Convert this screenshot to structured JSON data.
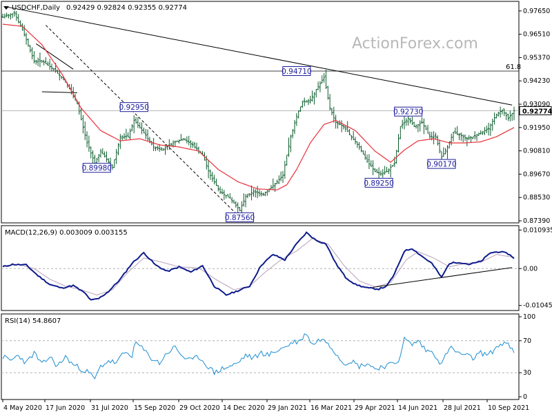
{
  "header": {
    "symbol_line": "USDCHF,Daily",
    "ohlc": "0.92429 0.92824 0.92355 0.92774"
  },
  "watermark": "ActionForex.com",
  "colors": {
    "bars": "#0a5a2a",
    "ma": "#e8303a",
    "macd": "#0c1a8c",
    "signal": "#b8a0b8",
    "rsi": "#1a8cd0",
    "label_border": "#1a1a9a",
    "grid_dash": "#b0b0b0"
  },
  "chart_data": [
    {
      "type": "candlestick",
      "title": "USDCHF,Daily",
      "ylim": [
        0.8739,
        0.9805
      ],
      "y_ticks": [
        "0.97650",
        "0.96510",
        "0.95370",
        "0.94230",
        "0.93090",
        "0.91950",
        "0.90810",
        "0.89670",
        "0.88530",
        "0.87390"
      ],
      "y_tick_values": [
        0.9765,
        0.9651,
        0.9537,
        0.9423,
        0.9309,
        0.9195,
        0.9081,
        0.8967,
        0.8853,
        0.8739
      ],
      "current_price_label": "0.92774",
      "current_price": 0.92774,
      "fib_label": "61.8",
      "fib_level": 0.9471,
      "x_date_labels": [
        "4 May 2020",
        "17 Jun 2020",
        "31 Jul 2020",
        "15 Sep 2020",
        "29 Oct 2020",
        "14 Dec 2020",
        "29 Jan 2021",
        "16 Mar 2021",
        "29 Apr 2021",
        "14 Jun 2021",
        "28 Jul 2021",
        "10 Sep 2021"
      ],
      "annotations": [
        {
          "text": "0.94710",
          "date_index": 150,
          "price": 0.9471
        },
        {
          "text": "0.92950",
          "date_index": 67,
          "price": 0.9295
        },
        {
          "text": "0.92730",
          "date_index": 207,
          "price": 0.9273
        },
        {
          "text": "0.89980",
          "date_index": 48,
          "price": 0.8998
        },
        {
          "text": "0.90170",
          "date_index": 224,
          "price": 0.9017
        },
        {
          "text": "0.89250",
          "date_index": 192,
          "price": 0.8925
        },
        {
          "text": "0.87560",
          "date_index": 121,
          "price": 0.8756
        }
      ],
      "trendlines": [
        {
          "from": [
            2,
            0.9785
          ],
          "to": [
            260,
            0.9305
          ]
        },
        {
          "from": [
            22,
            0.9695
          ],
          "to": [
            121,
            0.8756
          ],
          "style": "dashed"
        },
        {
          "from": [
            17,
            0.9605
          ],
          "to": [
            36,
            0.948
          ]
        },
        {
          "from": [
            20,
            0.937
          ],
          "to": [
            38,
            0.9365
          ]
        }
      ],
      "price_anchors": [
        [
          0,
          0.9735
        ],
        [
          6,
          0.9755
        ],
        [
          11,
          0.965
        ],
        [
          16,
          0.952
        ],
        [
          20,
          0.952
        ],
        [
          26,
          0.948
        ],
        [
          32,
          0.942
        ],
        [
          38,
          0.931
        ],
        [
          43,
          0.912
        ],
        [
          47,
          0.902
        ],
        [
          50,
          0.908
        ],
        [
          56,
          0.9
        ],
        [
          60,
          0.915
        ],
        [
          64,
          0.915
        ],
        [
          67,
          0.923
        ],
        [
          72,
          0.917
        ],
        [
          77,
          0.91
        ],
        [
          82,
          0.909
        ],
        [
          87,
          0.912
        ],
        [
          92,
          0.914
        ],
        [
          97,
          0.911
        ],
        [
          102,
          0.906
        ],
        [
          106,
          0.896
        ],
        [
          111,
          0.888
        ],
        [
          116,
          0.885
        ],
        [
          121,
          0.879
        ],
        [
          124,
          0.886
        ],
        [
          128,
          0.888
        ],
        [
          133,
          0.887
        ],
        [
          138,
          0.891
        ],
        [
          143,
          0.896
        ],
        [
          145,
          0.906
        ],
        [
          147,
          0.915
        ],
        [
          150,
          0.925
        ],
        [
          153,
          0.932
        ],
        [
          157,
          0.933
        ],
        [
          160,
          0.938
        ],
        [
          164,
          0.944
        ],
        [
          167,
          0.929
        ],
        [
          170,
          0.922
        ],
        [
          174,
          0.92
        ],
        [
          178,
          0.915
        ],
        [
          182,
          0.91
        ],
        [
          186,
          0.903
        ],
        [
          190,
          0.898
        ],
        [
          193,
          0.897
        ],
        [
          196,
          0.898
        ],
        [
          200,
          0.902
        ],
        [
          203,
          0.92
        ],
        [
          207,
          0.924
        ],
        [
          210,
          0.92
        ],
        [
          214,
          0.922
        ],
        [
          218,
          0.915
        ],
        [
          221,
          0.915
        ],
        [
          224,
          0.905
        ],
        [
          227,
          0.91
        ],
        [
          230,
          0.917
        ],
        [
          233,
          0.916
        ],
        [
          237,
          0.914
        ],
        [
          240,
          0.915
        ],
        [
          244,
          0.917
        ],
        [
          248,
          0.919
        ],
        [
          252,
          0.926
        ],
        [
          255,
          0.928
        ],
        [
          258,
          0.924
        ],
        [
          261,
          0.9277
        ]
      ],
      "series": [
        {
          "name": "MA",
          "values_anchor": [
            [
              0,
              0.97
            ],
            [
              10,
              0.969
            ],
            [
              20,
              0.96
            ],
            [
              30,
              0.946
            ],
            [
              40,
              0.929
            ],
            [
              50,
              0.918
            ],
            [
              60,
              0.913
            ],
            [
              70,
              0.914
            ],
            [
              80,
              0.911
            ],
            [
              90,
              0.91
            ],
            [
              100,
              0.908
            ],
            [
              110,
              0.899
            ],
            [
              120,
              0.893
            ],
            [
              130,
              0.8895
            ],
            [
              140,
              0.889
            ],
            [
              145,
              0.8915
            ],
            [
              150,
              0.899
            ],
            [
              157,
              0.912
            ],
            [
              164,
              0.921
            ],
            [
              170,
              0.923
            ],
            [
              180,
              0.918
            ],
            [
              190,
              0.908
            ],
            [
              198,
              0.9025
            ],
            [
              205,
              0.9085
            ],
            [
              212,
              0.913
            ],
            [
              220,
              0.914
            ],
            [
              228,
              0.912
            ],
            [
              236,
              0.912
            ],
            [
              244,
              0.9125
            ],
            [
              252,
              0.915
            ],
            [
              258,
              0.918
            ],
            [
              261,
              0.9195
            ]
          ]
        }
      ]
    },
    {
      "type": "line",
      "title": "MACD(12,26,9) 0.003009 0.003155",
      "ylim": [
        -0.0115,
        0.0118
      ],
      "y_ticks": [
        "0.010935",
        "0.00",
        "-0.010459"
      ],
      "y_tick_values": [
        0.010935,
        0.0,
        -0.010459
      ],
      "trendline": {
        "from": [
          189,
          -0.0053
        ],
        "to": [
          260,
          0.0003
        ]
      },
      "series": [
        {
          "name": "MACD",
          "values_anchor": [
            [
              0,
              0.0005
            ],
            [
              5,
              0.0012
            ],
            [
              12,
              0.001
            ],
            [
              18,
              -0.002
            ],
            [
              24,
              -0.0045
            ],
            [
              30,
              -0.0055
            ],
            [
              36,
              -0.0048
            ],
            [
              42,
              -0.007
            ],
            [
              45,
              -0.009
            ],
            [
              49,
              -0.0085
            ],
            [
              54,
              -0.0065
            ],
            [
              60,
              -0.003
            ],
            [
              66,
              0.0015
            ],
            [
              72,
              0.0045
            ],
            [
              78,
              0.001
            ],
            [
              84,
              -0.0008
            ],
            [
              90,
              0.0005
            ],
            [
              96,
              -0.001
            ],
            [
              102,
              0.0008
            ],
            [
              108,
              -0.005
            ],
            [
              114,
              -0.0075
            ],
            [
              120,
              -0.0063
            ],
            [
              126,
              -0.005
            ],
            [
              132,
              0.001
            ],
            [
              138,
              0.004
            ],
            [
              144,
              0.0025
            ],
            [
              150,
              0.007
            ],
            [
              155,
              0.0102
            ],
            [
              160,
              0.008
            ],
            [
              165,
              0.007
            ],
            [
              170,
              0.0015
            ],
            [
              175,
              -0.0025
            ],
            [
              180,
              -0.0045
            ],
            [
              186,
              -0.0055
            ],
            [
              192,
              -0.0058
            ],
            [
              196,
              -0.005
            ],
            [
              200,
              -0.0015
            ],
            [
              205,
              0.005
            ],
            [
              209,
              0.0057
            ],
            [
              214,
              0.0035
            ],
            [
              219,
              0.0015
            ],
            [
              224,
              -0.0025
            ],
            [
              228,
              0.0015
            ],
            [
              233,
              0.0018
            ],
            [
              238,
              0.0012
            ],
            [
              244,
              0.002
            ],
            [
              249,
              0.0045
            ],
            [
              254,
              0.0048
            ],
            [
              258,
              0.0042
            ],
            [
              261,
              0.003
            ]
          ]
        },
        {
          "name": "Signal",
          "values_anchor": [
            [
              0,
              0.0008
            ],
            [
              8,
              0.0012
            ],
            [
              16,
              0.0
            ],
            [
              24,
              -0.003
            ],
            [
              32,
              -0.005
            ],
            [
              40,
              -0.006
            ],
            [
              48,
              -0.0075
            ],
            [
              56,
              -0.006
            ],
            [
              64,
              -0.001
            ],
            [
              72,
              0.003
            ],
            [
              80,
              0.002
            ],
            [
              90,
              0.0005
            ],
            [
              100,
              0.0002
            ],
            [
              110,
              -0.0035
            ],
            [
              118,
              -0.006
            ],
            [
              126,
              -0.005
            ],
            [
              134,
              -0.001
            ],
            [
              142,
              0.0025
            ],
            [
              150,
              0.005
            ],
            [
              158,
              0.0085
            ],
            [
              166,
              0.007
            ],
            [
              174,
              0.001
            ],
            [
              182,
              -0.0035
            ],
            [
              190,
              -0.0052
            ],
            [
              198,
              -0.004
            ],
            [
              206,
              0.0025
            ],
            [
              212,
              0.0048
            ],
            [
              220,
              0.003
            ],
            [
              228,
              0.0005
            ],
            [
              236,
              0.0015
            ],
            [
              244,
              0.0018
            ],
            [
              252,
              0.004
            ],
            [
              261,
              0.0032
            ]
          ]
        }
      ]
    },
    {
      "type": "line",
      "title": "RSI(14) 54.8607",
      "ylim": [
        0,
        100
      ],
      "y_ticks": [
        "100",
        "70",
        "30",
        "0"
      ],
      "y_tick_values": [
        100,
        70,
        30,
        0
      ],
      "series": [
        {
          "name": "RSI",
          "values_anchor": [
            [
              0,
              50
            ],
            [
              4,
              45
            ],
            [
              8,
              52
            ],
            [
              12,
              42
            ],
            [
              16,
              55
            ],
            [
              20,
              40
            ],
            [
              24,
              50
            ],
            [
              28,
              38
            ],
            [
              32,
              50
            ],
            [
              36,
              40
            ],
            [
              40,
              35
            ],
            [
              44,
              30
            ],
            [
              47,
              22
            ],
            [
              50,
              38
            ],
            [
              54,
              45
            ],
            [
              58,
              42
            ],
            [
              62,
              55
            ],
            [
              66,
              52
            ],
            [
              68,
              68
            ],
            [
              72,
              58
            ],
            [
              76,
              48
            ],
            [
              80,
              42
            ],
            [
              84,
              55
            ],
            [
              88,
              62
            ],
            [
              92,
              50
            ],
            [
              96,
              45
            ],
            [
              100,
              50
            ],
            [
              104,
              40
            ],
            [
              108,
              30
            ],
            [
              112,
              35
            ],
            [
              116,
              38
            ],
            [
              120,
              42
            ],
            [
              124,
              52
            ],
            [
              128,
              48
            ],
            [
              132,
              55
            ],
            [
              136,
              52
            ],
            [
              140,
              58
            ],
            [
              144,
              62
            ],
            [
              148,
              68
            ],
            [
              152,
              70
            ],
            [
              155,
              80
            ],
            [
              158,
              65
            ],
            [
              162,
              72
            ],
            [
              166,
              68
            ],
            [
              170,
              55
            ],
            [
              174,
              42
            ],
            [
              178,
              45
            ],
            [
              182,
              38
            ],
            [
              186,
              42
            ],
            [
              190,
              35
            ],
            [
              194,
              38
            ],
            [
              198,
              40
            ],
            [
              202,
              45
            ],
            [
              205,
              72
            ],
            [
              209,
              65
            ],
            [
              212,
              70
            ],
            [
              216,
              58
            ],
            [
              220,
              55
            ],
            [
              224,
              40
            ],
            [
              228,
              62
            ],
            [
              232,
              55
            ],
            [
              236,
              52
            ],
            [
              240,
              48
            ],
            [
              244,
              55
            ],
            [
              248,
              52
            ],
            [
              252,
              62
            ],
            [
              256,
              68
            ],
            [
              259,
              62
            ],
            [
              261,
              54.86
            ]
          ]
        }
      ]
    }
  ]
}
